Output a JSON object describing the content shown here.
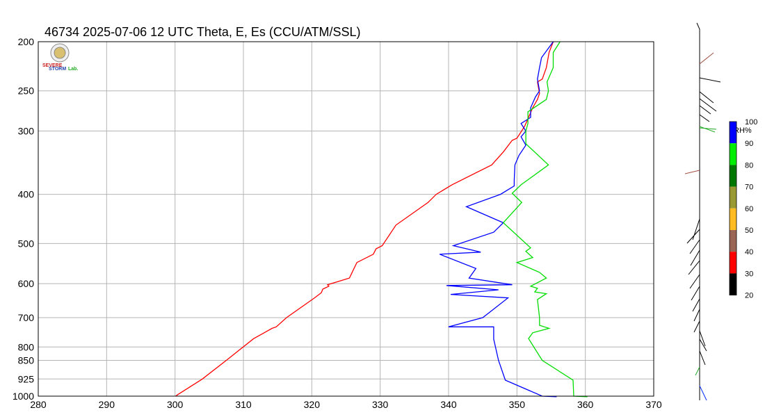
{
  "chart_data": {
    "type": "line",
    "title": "46734  2025-07-06 12 UTC  Theta, E, Es (CCU/ATM/SSL)",
    "xlim": [
      280,
      370
    ],
    "ylim": [
      1000,
      200
    ],
    "y_scale": "log",
    "grid": true,
    "x_ticks": [
      280,
      290,
      300,
      310,
      320,
      330,
      340,
      350,
      360,
      370
    ],
    "y_ticks": [
      200,
      250,
      300,
      400,
      500,
      600,
      700,
      800,
      850,
      925,
      1000
    ],
    "series": [
      {
        "name": "Theta",
        "color": "#ff0000",
        "points": [
          [
            300.1,
            1000
          ],
          [
            300.3,
            995
          ],
          [
            304,
            925
          ],
          [
            307.5,
            850
          ],
          [
            311.5,
            770
          ],
          [
            314.2,
            735
          ],
          [
            314.8,
            730
          ],
          [
            316.3,
            700
          ],
          [
            320.4,
            640
          ],
          [
            321.4,
            625
          ],
          [
            321.6,
            615
          ],
          [
            322.5,
            607
          ],
          [
            322.3,
            603
          ],
          [
            325.5,
            585
          ],
          [
            326.6,
            545
          ],
          [
            329,
            525
          ],
          [
            329.4,
            512
          ],
          [
            330.3,
            505
          ],
          [
            332.3,
            460
          ],
          [
            337,
            415
          ],
          [
            338.2,
            400
          ],
          [
            340.5,
            383
          ],
          [
            346.3,
            350
          ],
          [
            348,
            330
          ],
          [
            349.3,
            313
          ],
          [
            350,
            310
          ],
          [
            351.1,
            294
          ],
          [
            351.3,
            290
          ],
          [
            351.8,
            280
          ],
          [
            352.3,
            270
          ],
          [
            353,
            260
          ],
          [
            353.3,
            253
          ],
          [
            353,
            240
          ],
          [
            353.7,
            237
          ],
          [
            354.3,
            225
          ],
          [
            354.7,
            210
          ],
          [
            355.3,
            200
          ]
        ]
      },
      {
        "name": "E",
        "color": "#0000ff",
        "points": [
          [
            355.8,
            1003
          ],
          [
            353.7,
            1000
          ],
          [
            348.3,
            930
          ],
          [
            347.3,
            850
          ],
          [
            346.6,
            772
          ],
          [
            346.6,
            730
          ],
          [
            340,
            730
          ],
          [
            345,
            700
          ],
          [
            348.7,
            640
          ],
          [
            340.3,
            630
          ],
          [
            347.3,
            617
          ],
          [
            339.7,
            605
          ],
          [
            349.3,
            603
          ],
          [
            343,
            585
          ],
          [
            344,
            560
          ],
          [
            338.7,
            525
          ],
          [
            344.7,
            520
          ],
          [
            340.7,
            505
          ],
          [
            346.6,
            475
          ],
          [
            348,
            455
          ],
          [
            342.6,
            423
          ],
          [
            347.6,
            400
          ],
          [
            349.6,
            385
          ],
          [
            349.6,
            375
          ],
          [
            349.7,
            350
          ],
          [
            350.3,
            335
          ],
          [
            351.3,
            320
          ],
          [
            350.6,
            308
          ],
          [
            351.3,
            300
          ],
          [
            350.6,
            290
          ],
          [
            352,
            282
          ],
          [
            352,
            270
          ],
          [
            352.7,
            257
          ],
          [
            353.3,
            250
          ],
          [
            353,
            237
          ],
          [
            353.3,
            225
          ],
          [
            353.6,
            215
          ],
          [
            355.3,
            200
          ]
        ]
      },
      {
        "name": "Es",
        "color": "#00dd00",
        "points": [
          [
            360.3,
            1003
          ],
          [
            358.3,
            1000
          ],
          [
            358.2,
            930
          ],
          [
            353.7,
            850
          ],
          [
            351.7,
            770
          ],
          [
            352.3,
            750
          ],
          [
            354.7,
            735
          ],
          [
            353.3,
            725
          ],
          [
            353.3,
            700
          ],
          [
            353,
            645
          ],
          [
            354.3,
            628
          ],
          [
            352.6,
            623
          ],
          [
            353,
            613
          ],
          [
            352,
            607
          ],
          [
            354.3,
            585
          ],
          [
            353.3,
            570
          ],
          [
            350,
            545
          ],
          [
            352.3,
            533
          ],
          [
            351.3,
            518
          ],
          [
            352,
            510
          ],
          [
            348,
            455
          ],
          [
            350.7,
            415
          ],
          [
            349.3,
            398
          ],
          [
            350.6,
            383
          ],
          [
            354.6,
            350
          ],
          [
            351.3,
            318
          ],
          [
            351.3,
            300
          ],
          [
            351.6,
            290
          ],
          [
            351.6,
            275
          ],
          [
            354.3,
            260
          ],
          [
            354.6,
            250
          ],
          [
            354.4,
            240
          ],
          [
            355.3,
            225
          ],
          [
            355.3,
            210
          ],
          [
            356.3,
            200
          ]
        ]
      }
    ]
  },
  "rh_colorbar": {
    "label": "RH%",
    "ticks": [
      "100",
      "90",
      "80",
      "70",
      "60",
      "50",
      "40",
      "30",
      "20"
    ],
    "colors": [
      "#0000ff",
      "#00ee00",
      "#007700",
      "#999933",
      "#ffbb22",
      "#996655",
      "#ff0000",
      "#000000"
    ]
  },
  "logo": {
    "lines": [
      "SEVERE",
      "STORM",
      "Lab."
    ]
  }
}
